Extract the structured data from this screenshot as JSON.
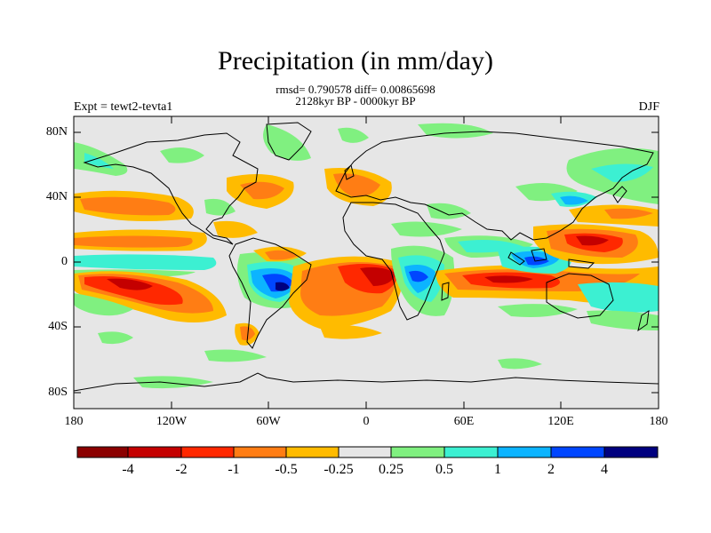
{
  "header": {
    "title": "Precipitation (in mm/day)",
    "stats": "rmsd= 0.790578 diff= 0.00865698",
    "period": "2128kyr BP - 0000kyr BP",
    "experiment": "Expt = tewt2-tevta1",
    "season": "DJF"
  },
  "map": {
    "lat_range": [
      -90,
      90
    ],
    "lon_range": [
      -180,
      180
    ],
    "lat_ticks": [
      "80N",
      "40N",
      "0",
      "40S",
      "80S"
    ],
    "lon_ticks": [
      "180",
      "120W",
      "60W",
      "0",
      "60E",
      "120E",
      "180"
    ],
    "background_color": "#e6e6e6"
  },
  "colorbar": {
    "colors": [
      "#8b0000",
      "#c40000",
      "#ff2800",
      "#ff7d14",
      "#ffbb00",
      "#e6e6e6",
      "#80f080",
      "#3cf0d2",
      "#0cb4ff",
      "#0046ff",
      "#00007f"
    ],
    "labels": [
      "-4",
      "-2",
      "-1",
      "-0.5",
      "-0.25",
      "0.25",
      "0.5",
      "1",
      "2",
      "4"
    ]
  }
}
